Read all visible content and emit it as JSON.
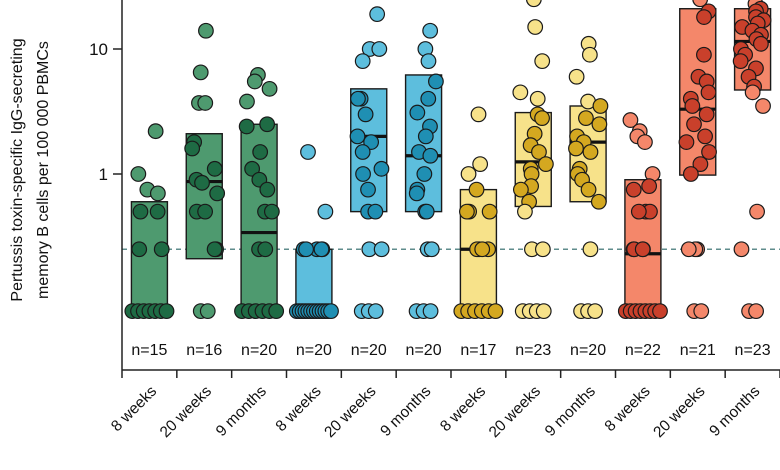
{
  "chart_data": {
    "type": "scatter",
    "subtype": "box-strip",
    "ylabel_lines": [
      "Pertussis toxin-specific IgG-secreting",
      "memory B cells per 100 000 PBMCs"
    ],
    "yscale": "log",
    "ylim": [
      0.038,
      30
    ],
    "yticks": [
      {
        "value": 1,
        "label": "1"
      },
      {
        "value": 10,
        "label": "10"
      }
    ],
    "reference_line": {
      "value": 0.25,
      "style": "dashed",
      "color": "#5f8c8c"
    },
    "lod_value": 0.08,
    "categories": [
      "8 weeks",
      "20 weeks",
      "9 months",
      "8 weeks",
      "20 weeks",
      "9 months",
      "8 weeks",
      "20 weeks",
      "9 months",
      "8 weeks",
      "20 weeks",
      "9 months"
    ],
    "n_labels": [
      "n=15",
      "n=16",
      "n=20",
      "n=20",
      "n=20",
      "n=20",
      "n=17",
      "n=23",
      "n=20",
      "n=22",
      "n=21",
      "n=23"
    ],
    "groups": [
      {
        "fill": "#4e9a6f",
        "dark": "#1e6b44",
        "box": [
          0.08,
          0.6
        ],
        "median": 0.08,
        "points": [
          2.2,
          1.0,
          0.75,
          0.7,
          0.5,
          0.5,
          0.25,
          0.25,
          0.08,
          0.08,
          0.08,
          0.08,
          0.08,
          0.08,
          0.08
        ]
      },
      {
        "fill": "#4e9a6f",
        "dark": "#1e6b44",
        "box": [
          0.21,
          2.1
        ],
        "median": 0.87,
        "points": [
          14,
          6.5,
          3.7,
          3.7,
          1.8,
          1.6,
          1.1,
          0.9,
          0.85,
          0.7,
          0.5,
          0.5,
          0.25,
          0.25,
          0.08,
          0.08
        ]
      },
      {
        "fill": "#4e9a6f",
        "dark": "#1e6b44",
        "box": [
          0.08,
          2.5
        ],
        "median": 0.34,
        "points": [
          6.2,
          5.5,
          4.8,
          3.8,
          2.5,
          2.4,
          1.5,
          1.1,
          0.9,
          0.75,
          0.5,
          0.5,
          0.25,
          0.25,
          0.08,
          0.08,
          0.08,
          0.08,
          0.08,
          0.08
        ]
      },
      {
        "fill": "#5dbedd",
        "dark": "#1f8fb3",
        "box": [
          0.08,
          0.25
        ],
        "median": 0.08,
        "points": [
          1.5,
          0.5,
          0.25,
          0.25,
          0.25,
          0.25,
          0.25,
          0.08,
          0.08,
          0.08,
          0.08,
          0.08,
          0.08,
          0.08,
          0.08,
          0.08,
          0.08,
          0.08,
          0.08,
          0.08
        ]
      },
      {
        "fill": "#5dbedd",
        "dark": "#1f8fb3",
        "box": [
          0.5,
          4.8
        ],
        "median": 2.0,
        "points": [
          19,
          10,
          10,
          8,
          4,
          4,
          3,
          2,
          1.8,
          1.5,
          1.1,
          1.0,
          0.75,
          0.5,
          0.5,
          0.25,
          0.25,
          0.08,
          0.08,
          0.08
        ]
      },
      {
        "fill": "#5dbedd",
        "dark": "#1f8fb3",
        "box": [
          0.5,
          6.2
        ],
        "median": 1.4,
        "points": [
          14,
          10,
          8,
          5.5,
          4,
          3.1,
          2.4,
          2.0,
          1.5,
          1.4,
          1.0,
          0.75,
          0.7,
          0.5,
          0.5,
          0.25,
          0.25,
          0.08,
          0.08,
          0.08
        ]
      },
      {
        "fill": "#f7e28a",
        "dark": "#d4a820",
        "box": [
          0.08,
          0.75
        ],
        "median": 0.25,
        "points": [
          3.0,
          1.2,
          1.0,
          0.75,
          0.5,
          0.5,
          0.5,
          0.25,
          0.25,
          0.25,
          0.25,
          0.08,
          0.08,
          0.08,
          0.08,
          0.08,
          0.08
        ]
      },
      {
        "fill": "#f7e28a",
        "dark": "#d4a820",
        "box": [
          0.55,
          3.1
        ],
        "median": 1.25,
        "points": [
          25,
          15,
          8,
          4.5,
          4,
          3,
          2.8,
          2.1,
          1.7,
          1.5,
          1.2,
          1.1,
          1.0,
          0.8,
          0.75,
          0.6,
          0.5,
          0.25,
          0.25,
          0.08,
          0.08,
          0.08,
          0.08
        ]
      },
      {
        "fill": "#f7e28a",
        "dark": "#d4a820",
        "box": [
          0.6,
          3.5
        ],
        "median": 1.8,
        "points": [
          11,
          9,
          6,
          3.8,
          3.5,
          2.8,
          2.5,
          2.0,
          1.8,
          1.6,
          1.5,
          1.1,
          1.0,
          0.9,
          0.75,
          0.6,
          0.25,
          0.08,
          0.08,
          0.08
        ]
      },
      {
        "fill": "#f4876a",
        "dark": "#c9402b",
        "box": [
          0.08,
          0.9
        ],
        "median": 0.23,
        "points": [
          2.7,
          2.2,
          2.0,
          1.8,
          1.0,
          0.8,
          0.75,
          0.5,
          0.5,
          0.5,
          0.25,
          0.25,
          0.25,
          0.25,
          0.08,
          0.08,
          0.08,
          0.08,
          0.08,
          0.08,
          0.08,
          0.08
        ]
      },
      {
        "fill": "#f4876a",
        "dark": "#c9402b",
        "box": [
          0.98,
          21
        ],
        "median": 3.3,
        "points": [
          25,
          20,
          18,
          9,
          6,
          5.5,
          4.5,
          4,
          3.5,
          3,
          2.5,
          2.0,
          1.8,
          1.5,
          1.2,
          1.0,
          0.25,
          0.25,
          0.25,
          0.08,
          0.08
        ]
      },
      {
        "fill": "#f4876a",
        "dark": "#c9402b",
        "box": [
          4.7,
          21
        ],
        "median": 11.5,
        "points": [
          23,
          21,
          20,
          18,
          17,
          16,
          15,
          14,
          13,
          12,
          11,
          10,
          9,
          8,
          7,
          6,
          5,
          4.5,
          3.5,
          0.5,
          0.25,
          0.08,
          0.08
        ]
      }
    ]
  }
}
